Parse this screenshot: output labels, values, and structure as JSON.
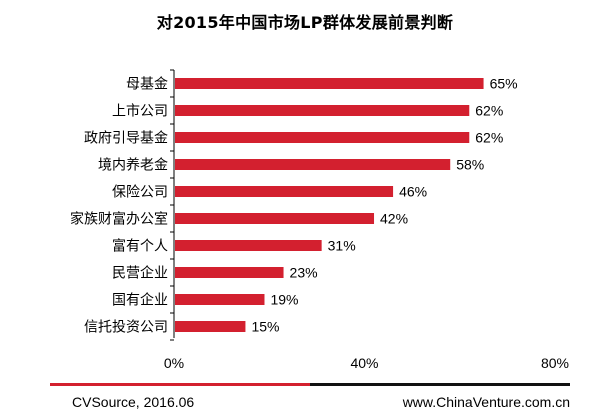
{
  "chart_data": {
    "type": "bar",
    "orientation": "horizontal",
    "title": "对2015年中国市场LP群体发展前景判断",
    "categories": [
      "母基金",
      "上市公司",
      "政府引导基金",
      "境内养老金",
      "保险公司",
      "家族财富办公室",
      "富有个人",
      "民营企业",
      "国有企业",
      "信托投资公司"
    ],
    "values": [
      65,
      62,
      62,
      58,
      46,
      42,
      31,
      23,
      19,
      15
    ],
    "value_suffix": "%",
    "xlim": [
      0,
      80
    ],
    "xticks": [
      "0%",
      "40%",
      "80%"
    ],
    "bar_color": "#d3202f",
    "grid": false
  },
  "footer": {
    "source": "CVSource, 2016.06",
    "website": "www.ChinaVenture.com.cn",
    "line_colors": [
      "#d3202f",
      "#111111"
    ]
  }
}
